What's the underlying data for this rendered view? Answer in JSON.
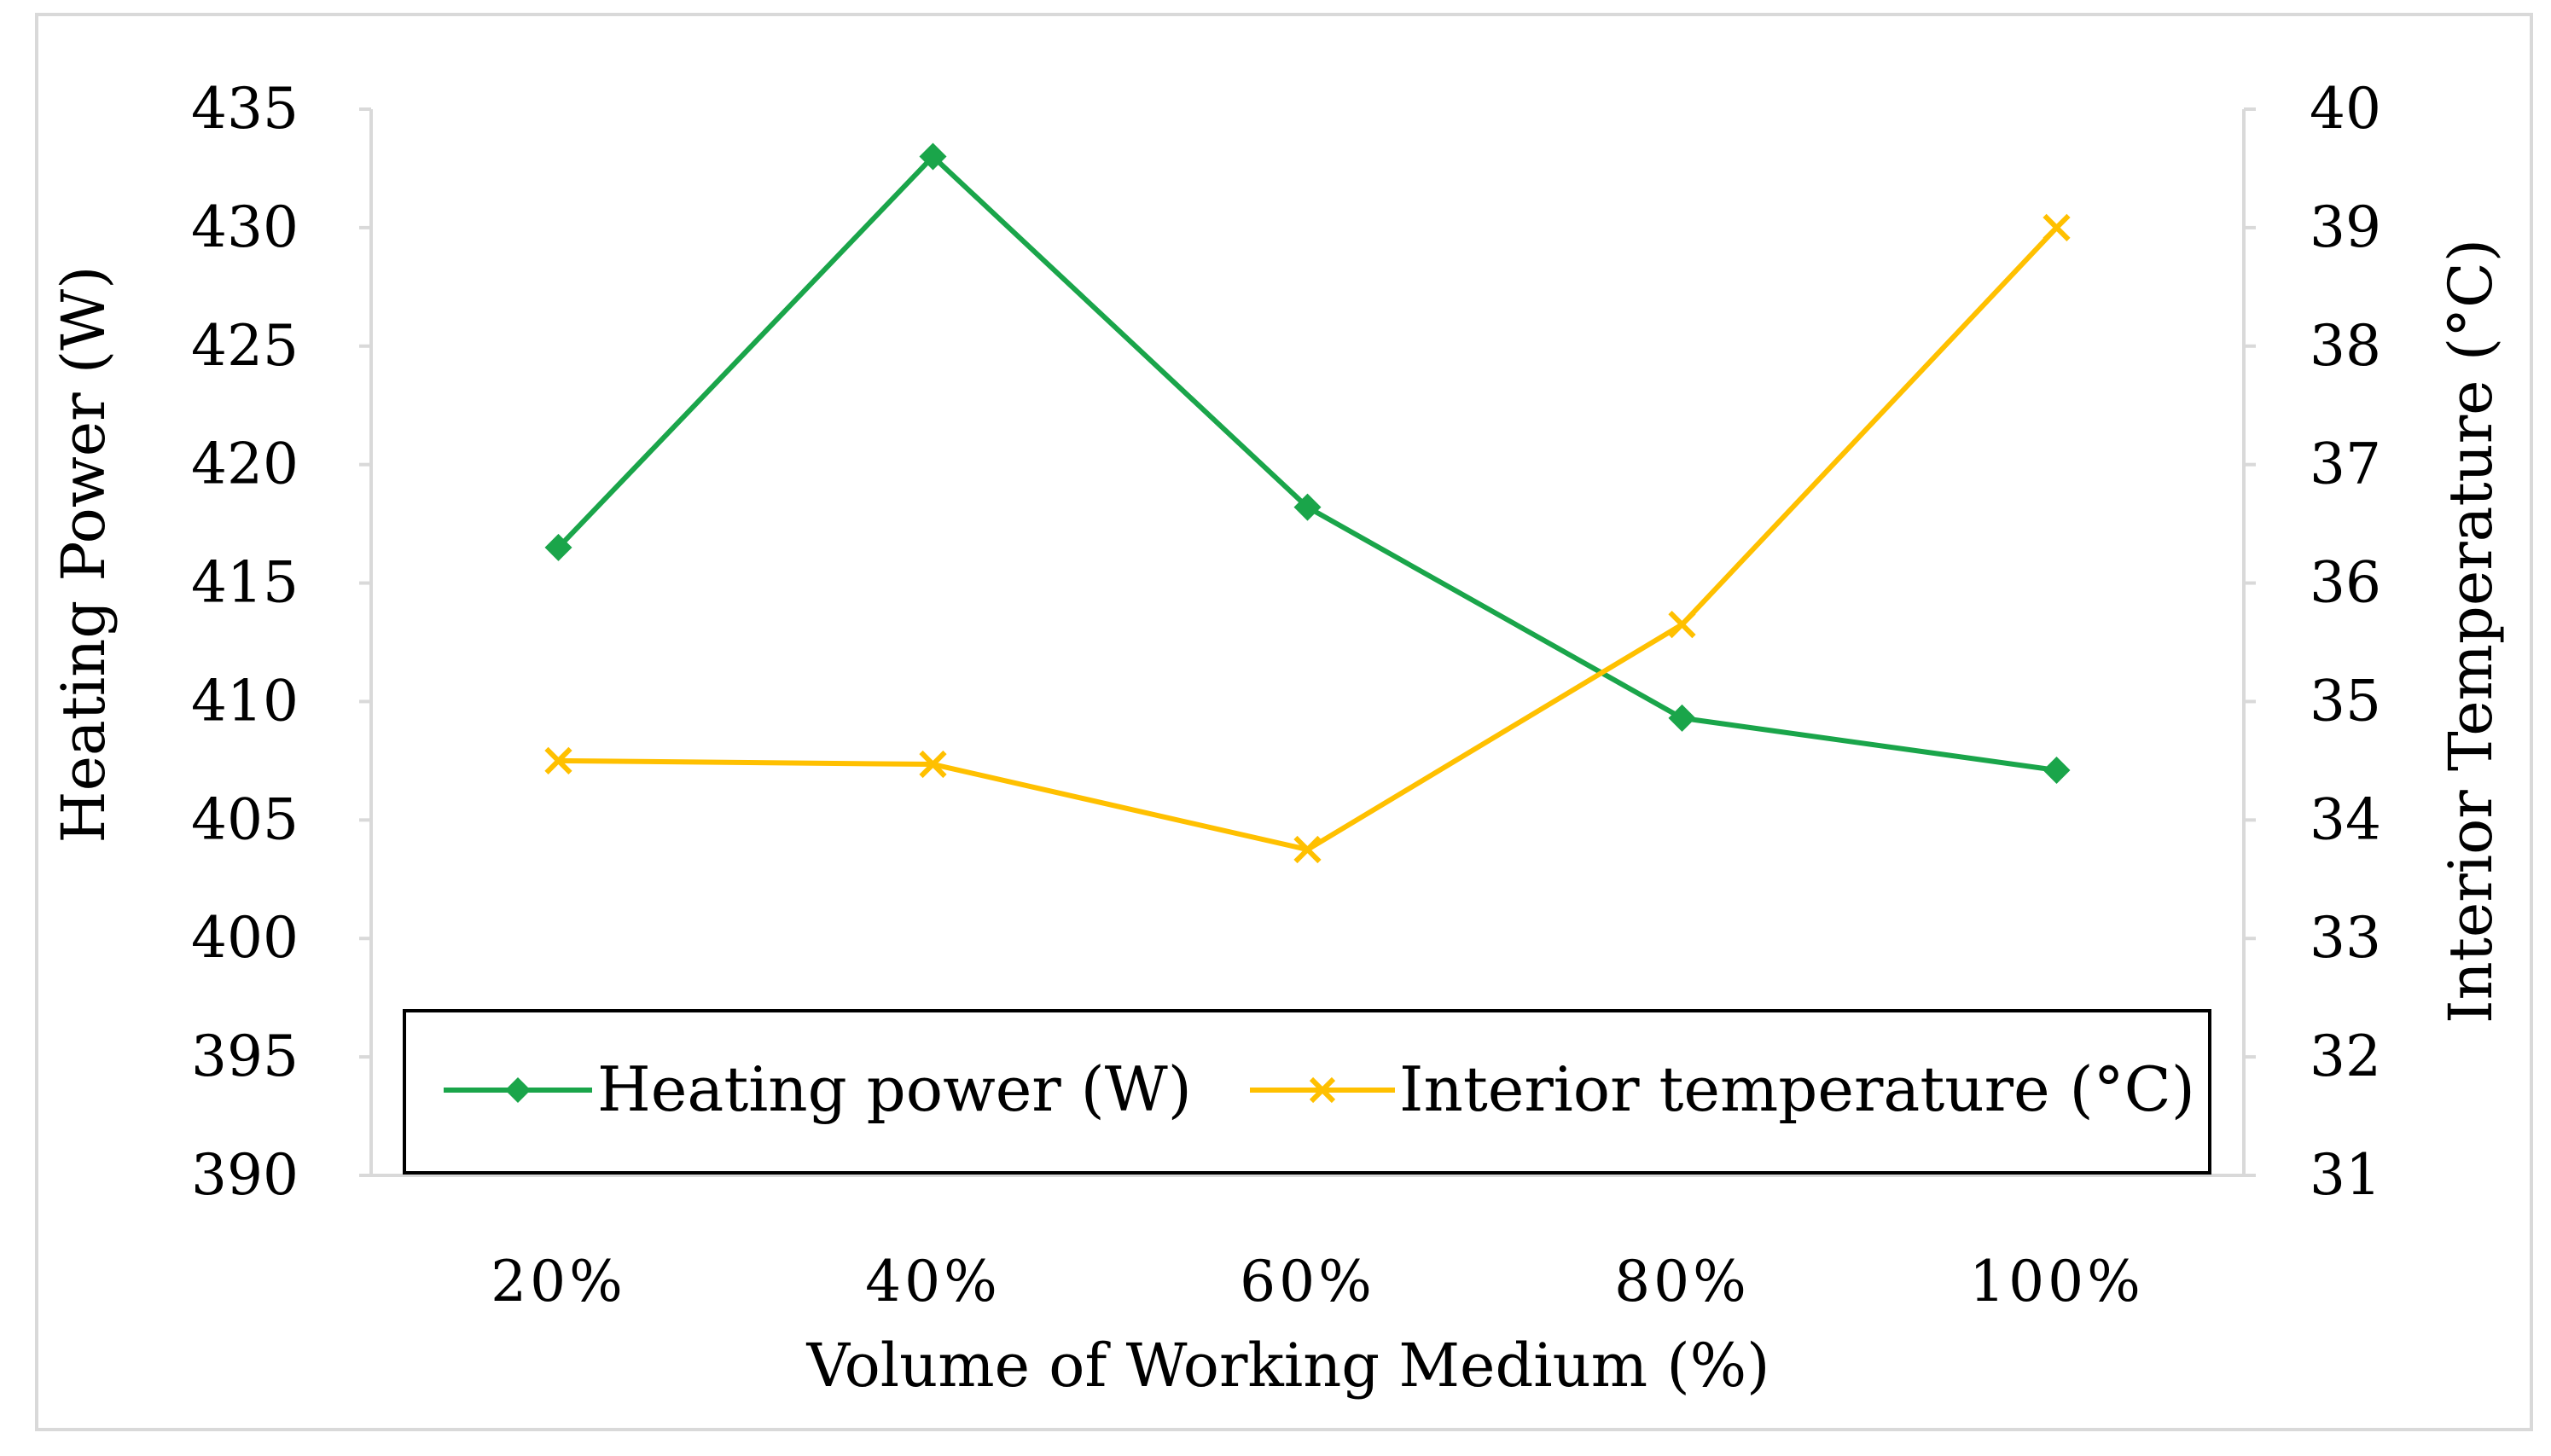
{
  "chart_data": {
    "type": "line",
    "title": "",
    "xlabel": "Volume of Working Medium (%)",
    "ylabel": "Heating Power (W)",
    "y2label": "Interior Temperature (°C)",
    "categories": [
      "20%",
      "40%",
      "60%",
      "80%",
      "100%"
    ],
    "ylim": [
      390,
      435
    ],
    "y2lim": [
      31,
      40
    ],
    "yticks": [
      "390",
      "395",
      "400",
      "405",
      "410",
      "415",
      "420",
      "425",
      "430",
      "435"
    ],
    "y2ticks": [
      "31",
      "32",
      "33",
      "34",
      "35",
      "36",
      "37",
      "38",
      "39",
      "40"
    ],
    "series": [
      {
        "name": "Heating power (W)",
        "axis": "left",
        "marker": "diamond",
        "color": "#1aa54a",
        "values": [
          416.5,
          433.0,
          418.2,
          409.3,
          407.1
        ]
      },
      {
        "name": "Interior temperature (°C)",
        "axis": "right",
        "marker": "x",
        "color": "#ffc000",
        "values": [
          34.5,
          34.47,
          33.75,
          35.65,
          39.0
        ]
      }
    ],
    "legend_position": "bottom-inside"
  },
  "colors": {
    "border": "#d9d9d9",
    "axis": "#d9d9d9",
    "legend_border": "#000000"
  }
}
